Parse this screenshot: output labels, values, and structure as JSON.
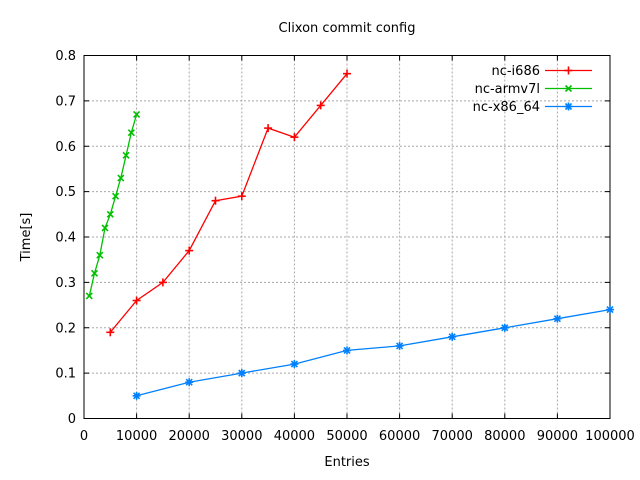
{
  "chart_data": {
    "type": "line",
    "title": "Clixon commit config",
    "xlabel": "Entries",
    "ylabel": "Time[s]",
    "xlim": [
      0,
      100000
    ],
    "ylim": [
      0,
      0.8
    ],
    "xticks": [
      0,
      10000,
      20000,
      30000,
      40000,
      50000,
      60000,
      70000,
      80000,
      90000,
      100000
    ],
    "yticks": [
      0,
      0.1,
      0.2,
      0.3,
      0.4,
      0.5,
      0.6,
      0.7,
      0.8
    ],
    "grid": true,
    "legend_position": "top-right-inside",
    "colors": {
      "grid": "#a8a8a8",
      "border": "#000000",
      "background": "#ffffff"
    },
    "series": [
      {
        "name": "nc-i686",
        "color": "#ff0000",
        "marker": "plus",
        "x": [
          5000,
          10000,
          15000,
          20000,
          25000,
          30000,
          35000,
          40000,
          45000,
          50000
        ],
        "y": [
          0.19,
          0.26,
          0.3,
          0.37,
          0.48,
          0.49,
          0.64,
          0.62,
          0.69,
          0.76
        ]
      },
      {
        "name": "nc-armv7l",
        "color": "#00c000",
        "marker": "cross",
        "x": [
          1000,
          2000,
          3000,
          4000,
          5000,
          6000,
          7000,
          8000,
          9000,
          10000
        ],
        "y": [
          0.27,
          0.32,
          0.36,
          0.42,
          0.45,
          0.49,
          0.53,
          0.58,
          0.63,
          0.67
        ]
      },
      {
        "name": "nc-x86_64",
        "color": "#0080ff",
        "marker": "asterisk",
        "x": [
          10000,
          20000,
          30000,
          40000,
          50000,
          60000,
          70000,
          80000,
          90000,
          100000
        ],
        "y": [
          0.05,
          0.08,
          0.1,
          0.12,
          0.15,
          0.16,
          0.18,
          0.2,
          0.22,
          0.24
        ]
      }
    ]
  }
}
